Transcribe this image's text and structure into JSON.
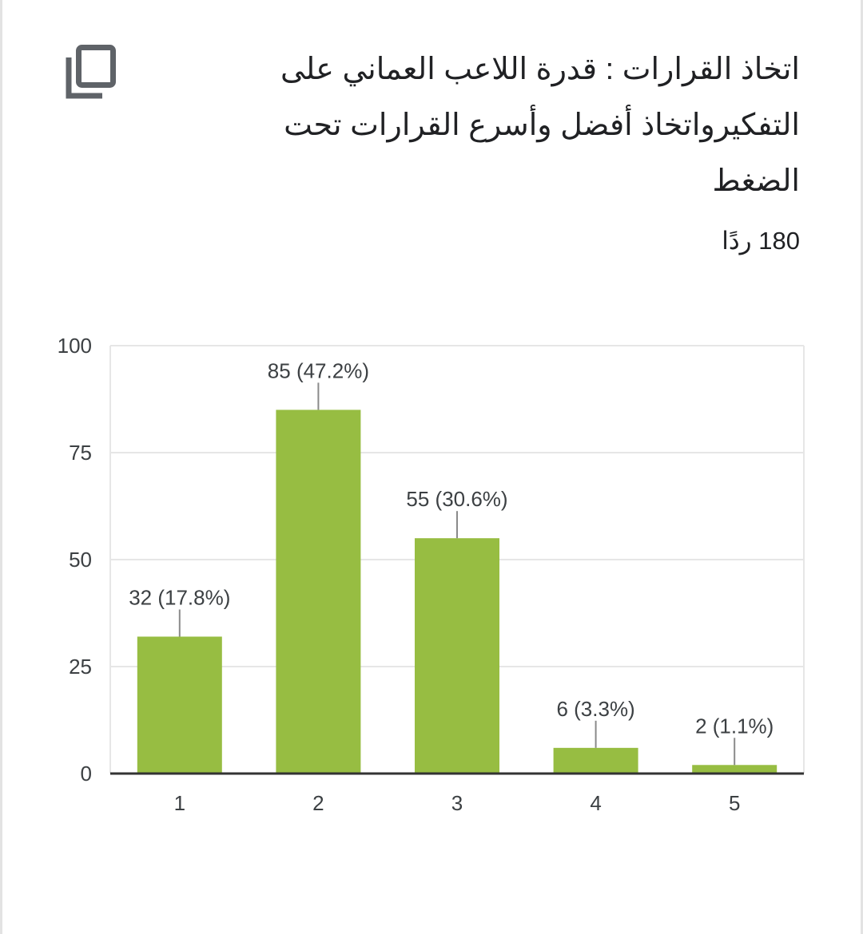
{
  "header": {
    "title": "اتخاذ القرارات : قدرة اللاعب العماني على التفكيرواتخاذ أفضل وأسرع القرارات تحت الضغط",
    "responses_label": "180 ردًا"
  },
  "colors": {
    "bar": "#97bd42",
    "grid": "#e6e6e6",
    "axis": "#333333",
    "leader": "#8a8a8a",
    "icon": "#5f6368"
  },
  "icons": {
    "copy": "copy-icon"
  },
  "chart_data": {
    "type": "bar",
    "categories": [
      "1",
      "2",
      "3",
      "4",
      "5"
    ],
    "values": [
      32,
      85,
      55,
      6,
      2
    ],
    "data_labels": [
      "32 (17.8%)",
      "85 (47.2%)",
      "55 (30.6%)",
      "6 (3.3%)",
      "2 (1.1%)"
    ],
    "ylim": [
      0,
      100
    ],
    "yticks": [
      0,
      25,
      50,
      75,
      100
    ],
    "grid": true,
    "xlabel": "",
    "ylabel": ""
  }
}
